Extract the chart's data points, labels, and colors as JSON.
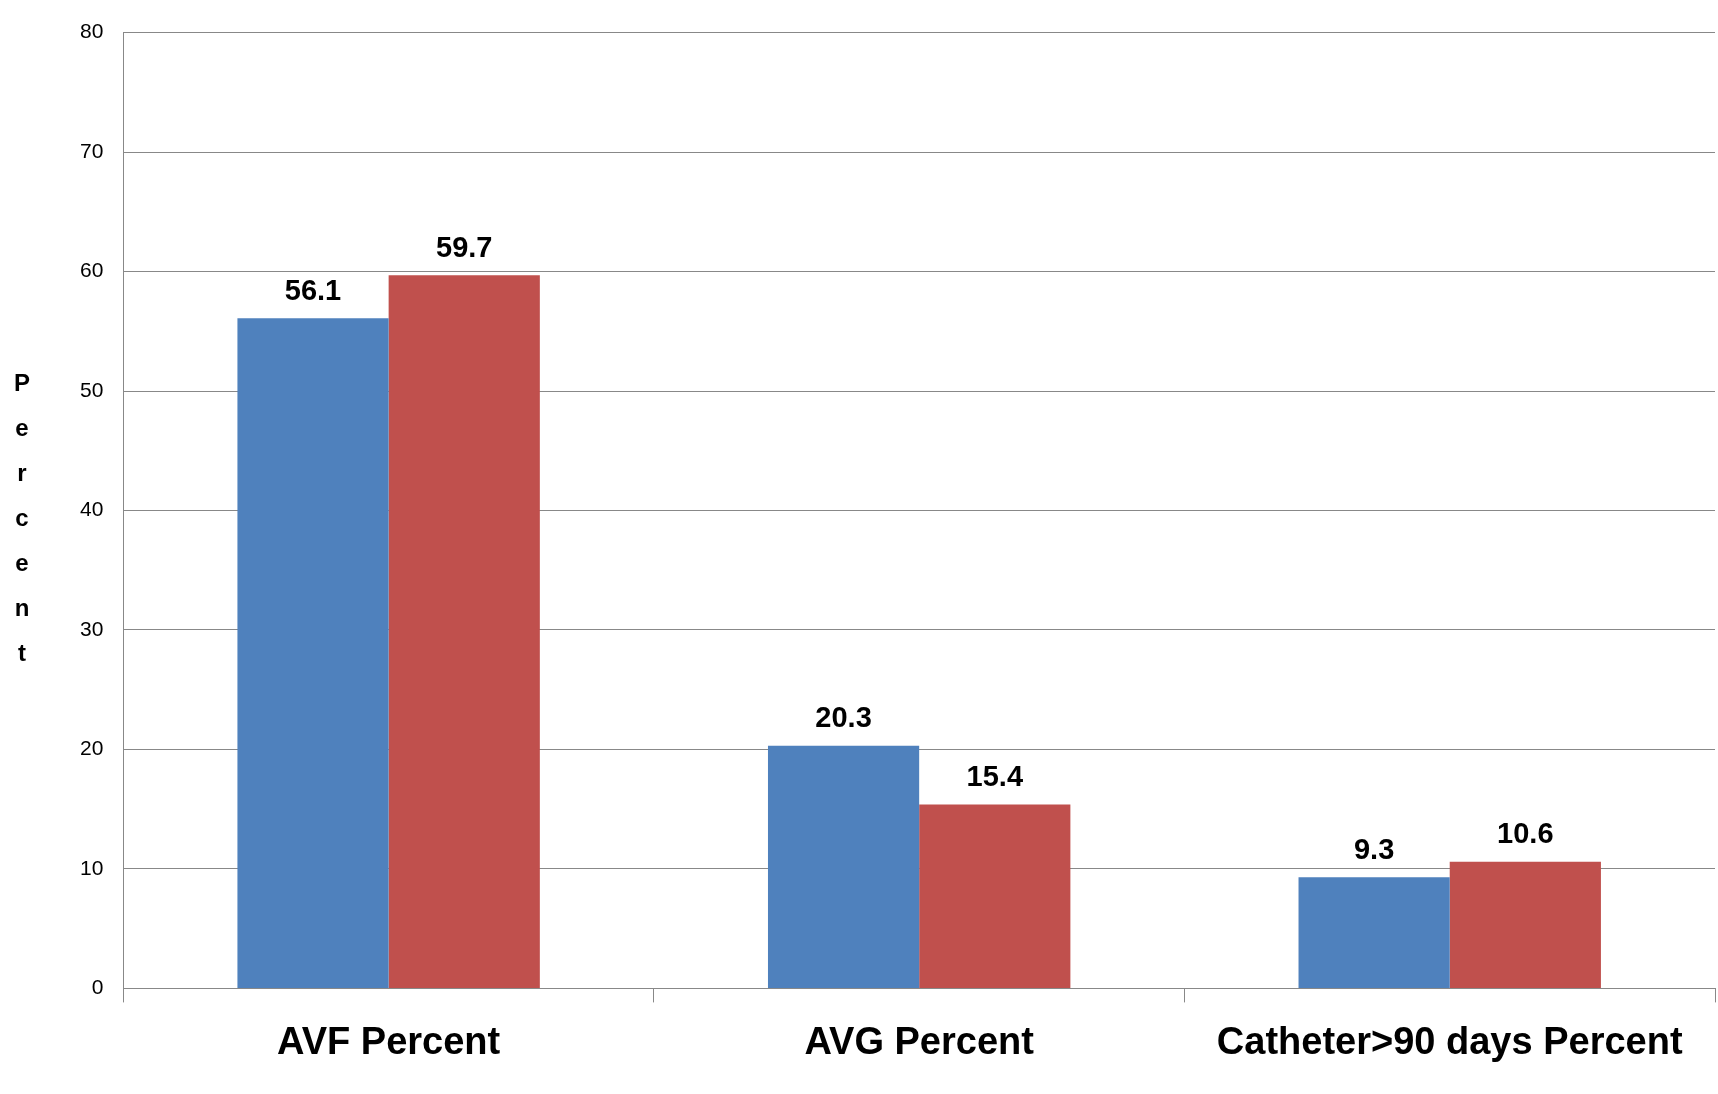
{
  "chart_data": {
    "type": "bar",
    "ylabel": "Percent",
    "categories": [
      "AVF Percent",
      "AVG Percent",
      "Catheter>90 days Percent"
    ],
    "series": [
      {
        "color": "#4f81bd",
        "values": [
          56.1,
          20.3,
          9.3
        ]
      },
      {
        "color": "#c0504d",
        "values": [
          59.7,
          15.4,
          10.6
        ]
      }
    ],
    "ylim": [
      0,
      80
    ],
    "yticks": [
      0,
      10,
      20,
      30,
      40,
      50,
      60,
      70,
      80
    ],
    "grid": "y",
    "legend": false,
    "data_labels": true
  }
}
